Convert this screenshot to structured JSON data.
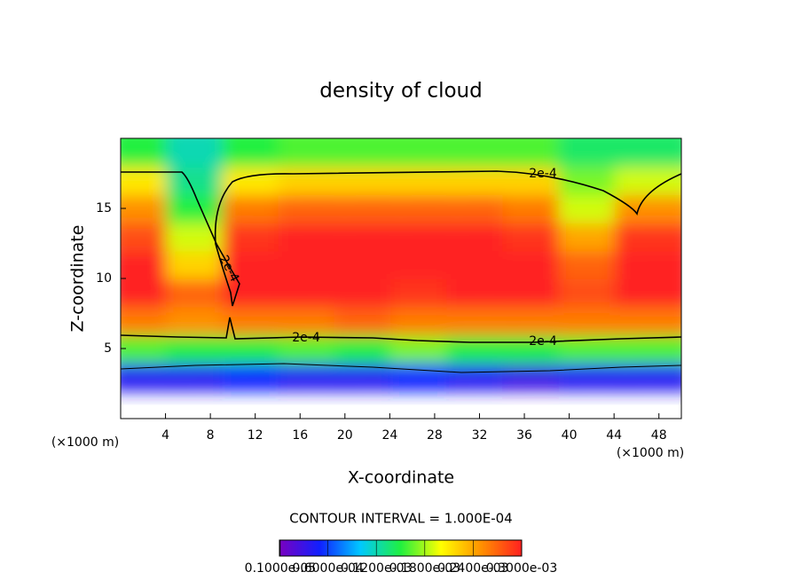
{
  "chart_data": {
    "type": "heatmap",
    "title": "density of cloud",
    "x_label": "X-coordinate",
    "y_label": "Z-coordinate",
    "x_unit": "(×1000 m)",
    "y_unit": "(×1000 m)",
    "footer": "CONTOUR INTERVAL = 1.000E-04",
    "contour_labels": [
      "2e-4",
      "2e-4",
      "2e-4",
      "2e-4"
    ],
    "xlim": [
      0,
      50
    ],
    "ylim": [
      0,
      20
    ],
    "xticks": [
      4,
      8,
      12,
      16,
      20,
      24,
      28,
      32,
      36,
      40,
      44,
      48
    ],
    "yticks": [
      5,
      10,
      15
    ],
    "x": [
      2.5,
      7.5,
      12.5,
      17.5,
      22.5,
      27.5,
      32.5,
      37.5,
      42.5,
      47.5
    ],
    "y": [
      1,
      3,
      5,
      7,
      9,
      11,
      13,
      15,
      17,
      19
    ],
    "z": [
      [
        null,
        null,
        null,
        null,
        null,
        null,
        null,
        null,
        null,
        null
      ],
      [
        4e-05,
        4e-05,
        5e-05,
        4e-05,
        4e-05,
        5e-05,
        4e-05,
        3e-05,
        4e-05,
        4e-05
      ],
      [
        0.00016,
        0.00015,
        0.00015,
        0.00016,
        0.00015,
        0.00017,
        0.00015,
        0.00015,
        0.00016,
        0.00016
      ],
      [
        0.00026,
        0.00025,
        0.00026,
        0.00026,
        0.00027,
        0.00026,
        0.00026,
        0.00026,
        0.00026,
        0.00026
      ],
      [
        0.0003,
        0.00027,
        0.0003,
        0.0003,
        0.0003,
        0.00029,
        0.0003,
        0.0003,
        0.00028,
        0.0003
      ],
      [
        0.0003,
        0.00022,
        0.0003,
        0.0003,
        0.0003,
        0.0003,
        0.0003,
        0.0003,
        0.00027,
        0.0003
      ],
      [
        0.00028,
        0.00019,
        0.00029,
        0.0003,
        0.0003,
        0.0003,
        0.0003,
        0.00029,
        0.00024,
        0.00029
      ],
      [
        0.00025,
        0.00015,
        0.00026,
        0.00027,
        0.00027,
        0.00027,
        0.00027,
        0.00026,
        0.00019,
        0.00025
      ],
      [
        0.00021,
        0.00013,
        0.00021,
        0.00022,
        0.00022,
        0.00022,
        0.00022,
        0.00022,
        0.00017,
        0.00019
      ],
      [
        0.00015,
        0.00012,
        0.00015,
        0.00016,
        0.00016,
        0.00016,
        0.00016,
        0.00016,
        0.00014,
        0.00014
      ]
    ],
    "zlim": [
      0,
      0.0003
    ],
    "colormap": [
      "#7a00c0",
      "#1020ff",
      "#00c8ff",
      "#20f040",
      "#ffff00",
      "#ff9000",
      "#ff2020"
    ],
    "colorbar_ticks": [
      {
        "value": 1e-06,
        "label": "0.1000e-05"
      },
      {
        "value": 6e-05,
        "label": "0.6000e-04"
      },
      {
        "value": 0.00012,
        "label": "0.1200e-03"
      },
      {
        "value": 0.00018,
        "label": "0.1800e-03"
      },
      {
        "value": 0.00024,
        "label": "0.2400e-03"
      },
      {
        "value": 0.0003,
        "label": "0.3000e-03"
      }
    ]
  }
}
